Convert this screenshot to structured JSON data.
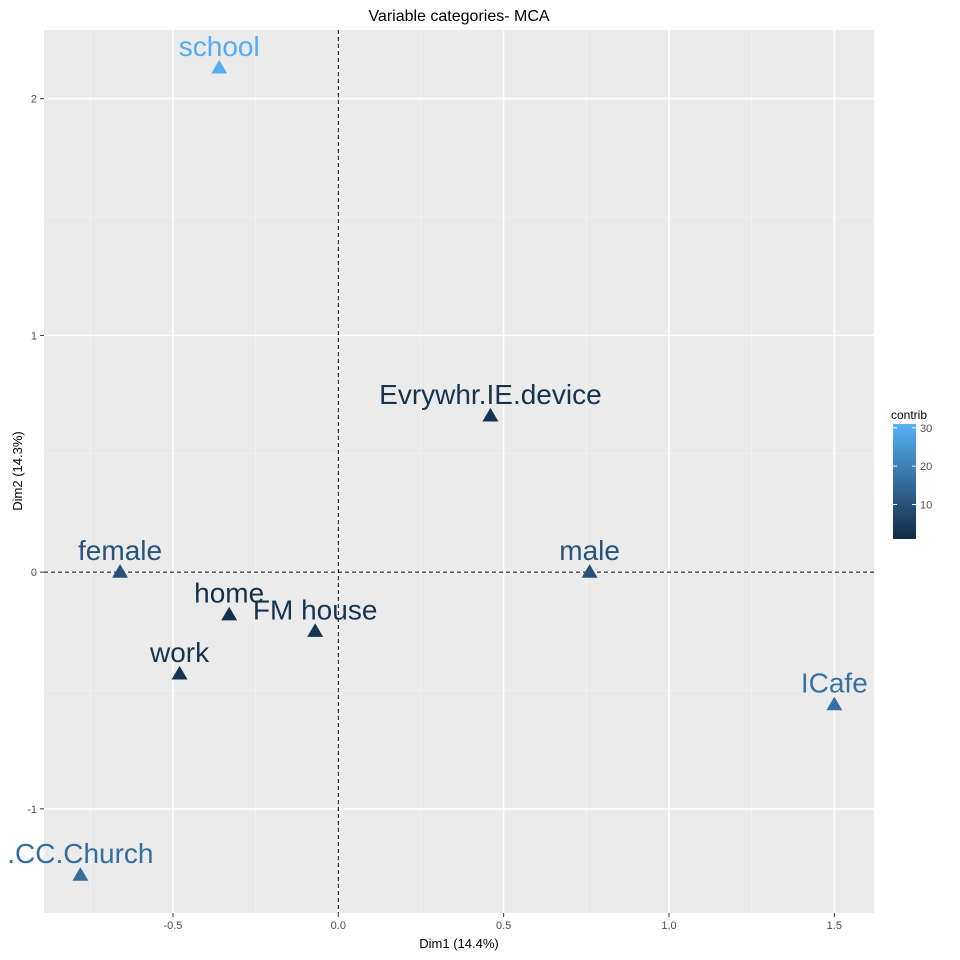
{
  "chart_data": {
    "type": "scatter",
    "title": "Variable categories- MCA",
    "xlabel": "Dim1 (14.4%)",
    "ylabel": "Dim2 (14.3%)",
    "xlim": [
      -0.89,
      1.62
    ],
    "ylim": [
      -1.44,
      2.29
    ],
    "x_ticks": [
      -0.5,
      0.0,
      0.5,
      1.0,
      1.5
    ],
    "x_tick_labels": [
      "-0.5",
      "0.0",
      "0.5",
      "1.0",
      "1.5"
    ],
    "y_ticks": [
      -1,
      0,
      1,
      2
    ],
    "y_tick_labels": [
      "-1",
      "0",
      "1",
      "2"
    ],
    "grid": true,
    "reference_lines": {
      "x": 0,
      "y": 0,
      "style": "dashed"
    },
    "points": [
      {
        "label": "school",
        "x": -0.36,
        "y": 2.13,
        "contrib": 30
      },
      {
        "label": "Evrywhr.IE.device",
        "x": 0.46,
        "y": 0.66,
        "contrib": 3
      },
      {
        "label": "female",
        "x": -0.66,
        "y": 0.0,
        "contrib": 10
      },
      {
        "label": "male",
        "x": 0.76,
        "y": 0.0,
        "contrib": 10
      },
      {
        "label": "home",
        "x": -0.33,
        "y": -0.18,
        "contrib": 2
      },
      {
        "label": "FM house",
        "x": -0.07,
        "y": -0.25,
        "contrib": 3
      },
      {
        "label": "work",
        "x": -0.48,
        "y": -0.43,
        "contrib": 3
      },
      {
        "label": "ICafe",
        "x": 1.5,
        "y": -0.56,
        "contrib": 17
      },
      {
        "label": ".CC.Church",
        "x": -0.78,
        "y": -1.28,
        "contrib": 16
      }
    ],
    "legend": {
      "title": "contrib",
      "placement": "right",
      "range": [
        1,
        31
      ],
      "ticks": [
        10,
        20,
        30
      ],
      "tick_labels": [
        "10",
        "20",
        "30"
      ],
      "color_low": "#132b43",
      "color_high": "#56b1f7"
    },
    "colors": {
      "panel_background": "#ebebeb",
      "grid": "#ffffff",
      "reference_line": "#000000"
    }
  }
}
